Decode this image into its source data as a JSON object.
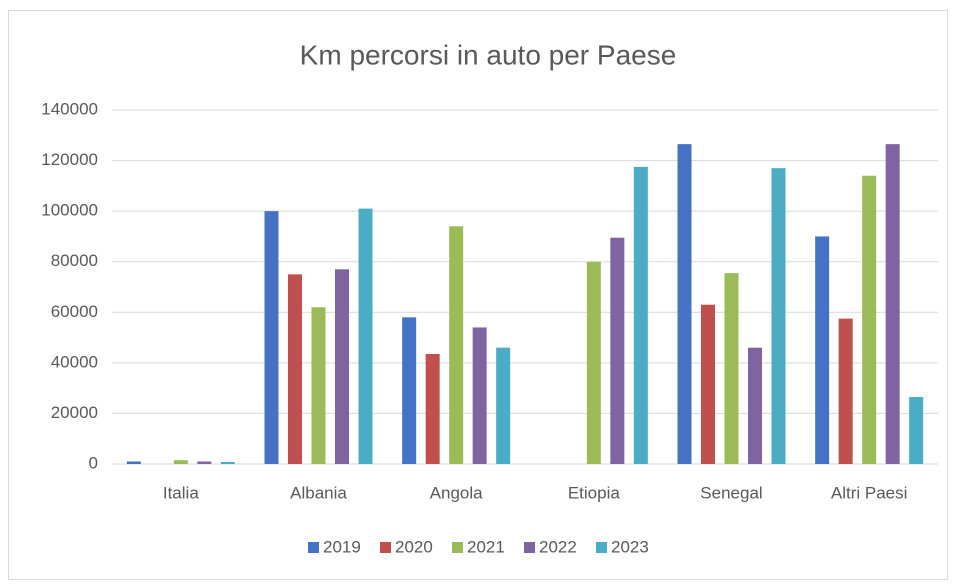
{
  "chart_data": {
    "type": "bar",
    "title": "Km percorsi in auto per Paese",
    "categories": [
      "Italia",
      "Albania",
      "Angola",
      "Etiopia",
      "Senegal",
      "Altri Paesi"
    ],
    "series": [
      {
        "name": "2019",
        "color": "#4472c4",
        "values": [
          1000,
          100000,
          58000,
          0,
          126500,
          90000
        ]
      },
      {
        "name": "2020",
        "color": "#c0504d",
        "values": [
          0,
          75000,
          43500,
          0,
          63000,
          57500
        ]
      },
      {
        "name": "2021",
        "color": "#9bbb59",
        "values": [
          1500,
          62000,
          94000,
          80000,
          75500,
          114000
        ]
      },
      {
        "name": "2022",
        "color": "#8064a2",
        "values": [
          1000,
          77000,
          54000,
          89500,
          46000,
          126500
        ]
      },
      {
        "name": "2023",
        "color": "#4bacc6",
        "values": [
          800,
          101000,
          46000,
          117500,
          117000,
          26500
        ]
      }
    ],
    "ylim": [
      0,
      140000
    ],
    "yticks": [
      0,
      20000,
      40000,
      60000,
      80000,
      100000,
      120000,
      140000
    ],
    "grid": true,
    "legend": "bottom"
  }
}
